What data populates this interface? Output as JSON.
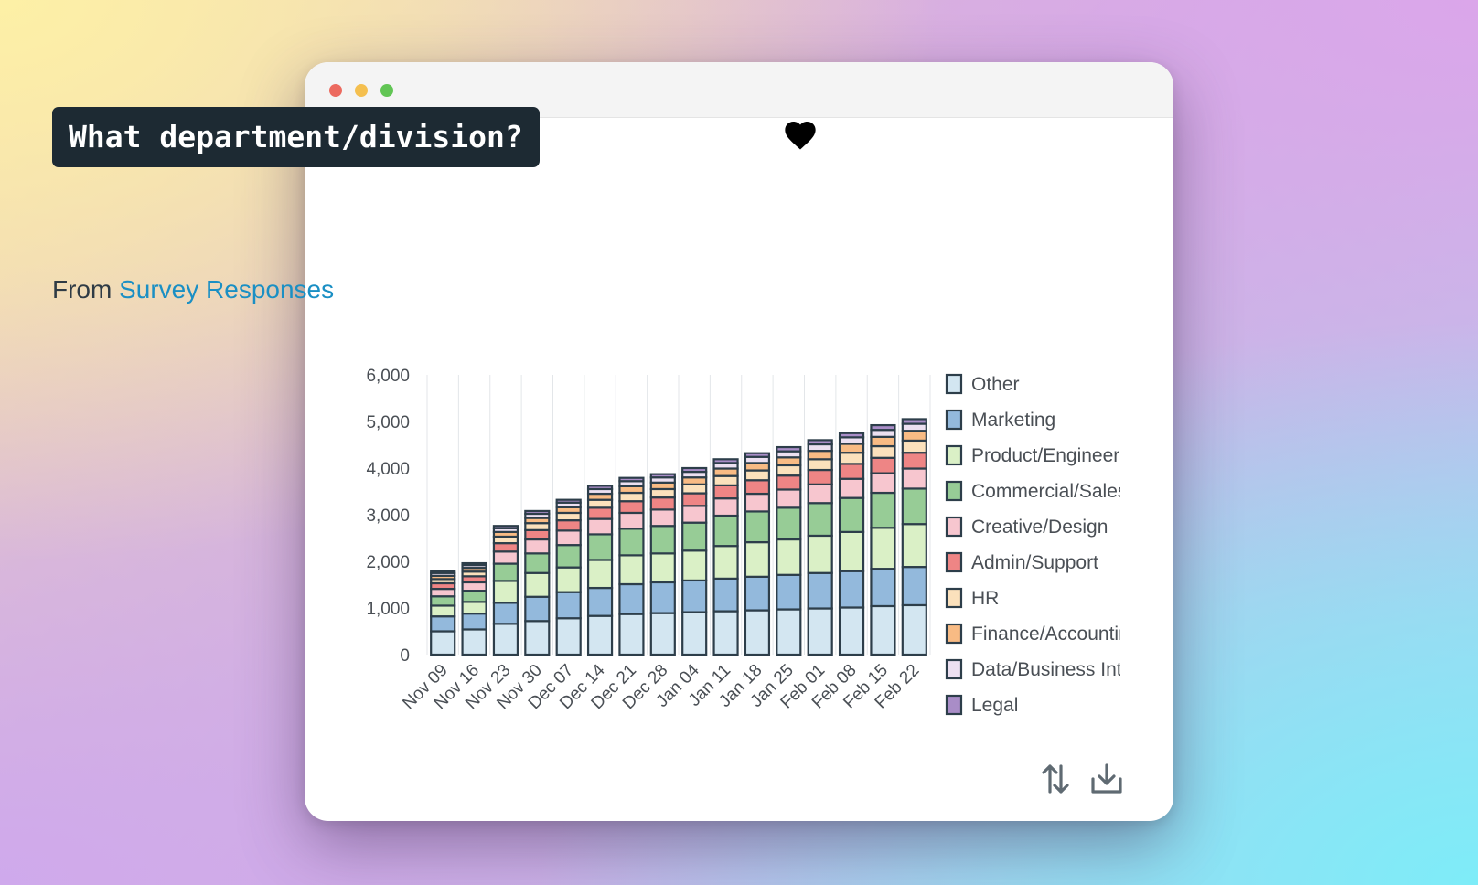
{
  "window": {
    "controls": [
      "close",
      "minimize",
      "maximize"
    ]
  },
  "card": {
    "title": "What department/division?",
    "subtitle_prefix": "From ",
    "source_link": "Survey Responses",
    "favorite_icon": "heart-icon",
    "tools": [
      {
        "icon": "sort-arrows-icon"
      },
      {
        "icon": "download-icon"
      }
    ]
  },
  "colors": {
    "accent_link": "#1a8fc4",
    "title_bg": "#1d2a33",
    "bar_stroke": "#2d3e4a"
  },
  "chart_data": {
    "type": "bar",
    "stacked": true,
    "categories": [
      "Nov 09",
      "Nov 16",
      "Nov 23",
      "Nov 30",
      "Dec 07",
      "Dec 14",
      "Dec 21",
      "Dec 28",
      "Jan 04",
      "Jan 11",
      "Jan 18",
      "Jan 25",
      "Feb 01",
      "Feb 08",
      "Feb 15",
      "Feb 22"
    ],
    "ylim": [
      0,
      6000
    ],
    "yticks": [
      0,
      1000,
      2000,
      3000,
      4000,
      5000,
      6000
    ],
    "ytick_labels": [
      "0",
      "1,000",
      "2,000",
      "3,000",
      "4,000",
      "5,000",
      "6,000"
    ],
    "legend_position": "right",
    "grid": "vertical",
    "series": [
      {
        "name": "Other",
        "color": "#d3e6f1",
        "values": [
          500,
          540,
          660,
          720,
          780,
          830,
          870,
          890,
          910,
          930,
          950,
          970,
          990,
          1010,
          1040,
          1060
        ]
      },
      {
        "name": "Marketing",
        "color": "#93b9dc",
        "values": [
          320,
          340,
          450,
          520,
          560,
          600,
          640,
          660,
          680,
          700,
          720,
          740,
          760,
          780,
          800,
          820
        ]
      },
      {
        "name": "Product/Engineer",
        "color": "#daf0c6",
        "values": [
          230,
          250,
          470,
          510,
          530,
          600,
          620,
          620,
          640,
          700,
          740,
          760,
          800,
          840,
          880,
          920
        ]
      },
      {
        "name": "Commercial/Sales",
        "color": "#97cc96",
        "values": [
          200,
          240,
          370,
          420,
          480,
          550,
          570,
          590,
          600,
          650,
          660,
          680,
          700,
          730,
          750,
          760
        ]
      },
      {
        "name": "Creative/Design",
        "color": "#f7c6cf",
        "values": [
          160,
          180,
          260,
          300,
          310,
          330,
          340,
          350,
          360,
          370,
          380,
          390,
          400,
          410,
          420,
          430
        ]
      },
      {
        "name": "Admin/Support",
        "color": "#ee8585",
        "values": [
          120,
          130,
          180,
          200,
          220,
          240,
          250,
          260,
          270,
          280,
          290,
          300,
          310,
          320,
          330,
          340
        ]
      },
      {
        "name": "HR",
        "color": "#fbe1bc",
        "values": [
          90,
          100,
          140,
          150,
          160,
          170,
          180,
          180,
          190,
          200,
          210,
          220,
          230,
          240,
          250,
          260
        ]
      },
      {
        "name": "Finance/Accounting",
        "color": "#f8bb84",
        "values": [
          70,
          80,
          100,
          110,
          120,
          130,
          140,
          140,
          150,
          160,
          160,
          170,
          180,
          190,
          200,
          210
        ]
      },
      {
        "name": "Data/Business Intelligence",
        "color": "#ece0f1",
        "values": [
          60,
          60,
          80,
          90,
          100,
          100,
          110,
          110,
          120,
          120,
          130,
          130,
          140,
          140,
          150,
          150
        ]
      },
      {
        "name": "Legal",
        "color": "#a98dc7",
        "values": [
          40,
          40,
          50,
          60,
          60,
          70,
          70,
          70,
          80,
          80,
          80,
          90,
          90,
          90,
          100,
          100
        ]
      }
    ]
  }
}
